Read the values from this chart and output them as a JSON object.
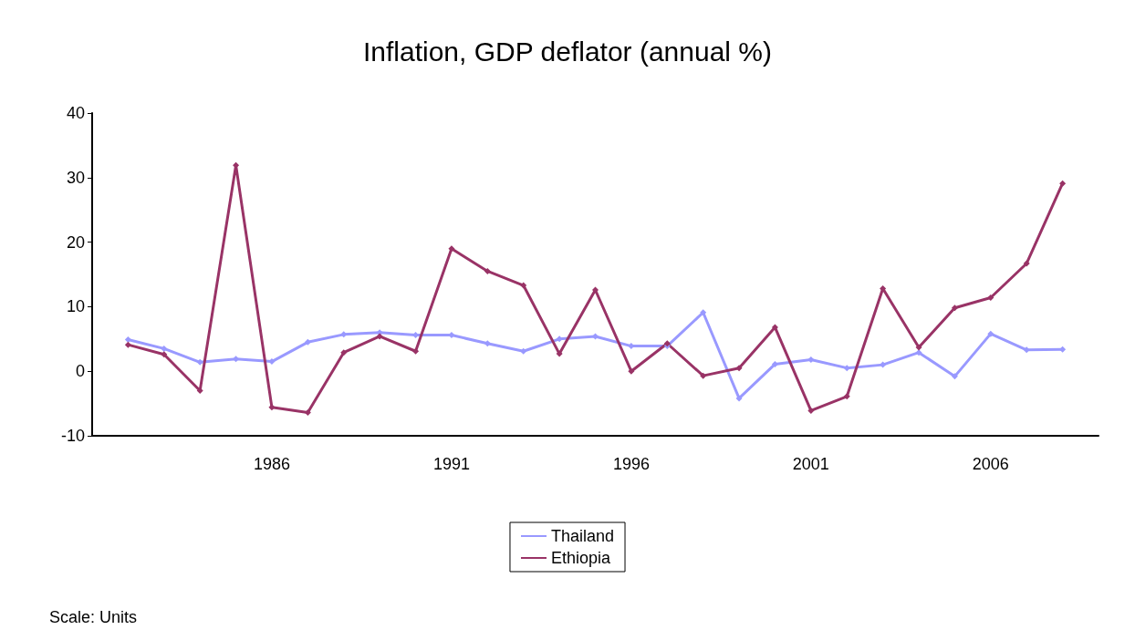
{
  "chart_data": {
    "type": "line",
    "title": "Inflation, GDP deflator (annual %)",
    "x": [
      1982,
      1983,
      1984,
      1985,
      1986,
      1987,
      1988,
      1989,
      1990,
      1991,
      1992,
      1993,
      1994,
      1995,
      1996,
      1997,
      1998,
      1999,
      2000,
      2001,
      2002,
      2003,
      2004,
      2005,
      2006,
      2007,
      2008
    ],
    "series": [
      {
        "name": "Thailand",
        "color": "#9999ff",
        "values": [
          4.9,
          3.5,
          1.4,
          1.9,
          1.5,
          4.5,
          5.7,
          6.0,
          5.6,
          5.6,
          4.3,
          3.1,
          5.0,
          5.4,
          3.9,
          3.9,
          9.1,
          -4.2,
          1.1,
          1.8,
          0.5,
          1.0,
          2.9,
          -0.8,
          5.8,
          3.3,
          3.4
        ]
      },
      {
        "name": "Ethiopia",
        "color": "#993366",
        "values": [
          4.1,
          2.6,
          -3.0,
          31.9,
          -5.6,
          -6.4,
          2.9,
          5.4,
          3.1,
          19.0,
          15.5,
          13.3,
          2.7,
          12.6,
          0.0,
          4.3,
          -0.7,
          0.5,
          6.8,
          -6.1,
          -3.9,
          12.8,
          3.7,
          9.8,
          11.4,
          16.7,
          29.1
        ]
      }
    ],
    "xlim": [
      1981,
      2009
    ],
    "xticks": [
      1986,
      1991,
      1996,
      2001,
      2006
    ],
    "ylim": [
      -10,
      40
    ],
    "yticks": [
      -10,
      0,
      10,
      20,
      30,
      40
    ],
    "grid": false,
    "legend": "bottom",
    "marker": "diamond",
    "line_style": "solid",
    "annotations": [
      "Scale: Units"
    ]
  }
}
